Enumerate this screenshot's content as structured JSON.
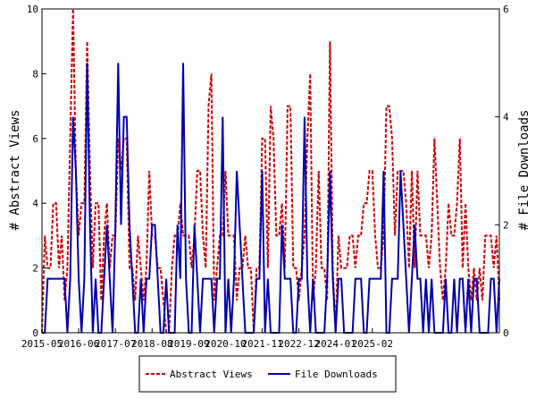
{
  "chart_data": {
    "type": "line",
    "title": "",
    "ylabel_left": "# Abstract Views",
    "ylabel_right": "# File Downloads",
    "ylim_left": [
      0,
      10
    ],
    "ylim_right": [
      0,
      6
    ],
    "grid": false,
    "legend_position": "bottom-center",
    "x_ticks": [
      "2015-05",
      "2016-06",
      "2017-07",
      "2018-08",
      "2019-09",
      "2020-10",
      "2021-11",
      "2022-12",
      "2024-01",
      "2025-02"
    ],
    "y_ticks_left": [
      0,
      2,
      4,
      6,
      8,
      10
    ],
    "y_ticks_right": [
      0,
      2,
      4,
      6
    ],
    "x_start": "2015-05",
    "series": [
      {
        "name": "Abstract Views",
        "axis": "left",
        "color": "#cc0000",
        "dashed": true,
        "values": [
          0,
          3,
          2,
          2,
          4,
          4,
          2,
          3,
          1,
          2,
          6,
          10,
          5,
          3,
          4,
          4,
          9,
          5,
          2,
          4,
          4,
          1,
          3,
          4,
          2,
          3,
          3,
          6,
          5,
          6,
          6,
          2,
          2,
          1,
          3,
          2,
          1,
          2,
          5,
          3,
          3,
          2,
          2,
          1,
          0,
          0,
          2,
          3,
          3,
          4,
          3,
          3,
          3,
          2,
          3,
          5,
          5,
          3,
          2,
          7,
          8,
          1,
          2,
          3,
          3,
          5,
          3,
          3,
          3,
          1,
          2,
          2,
          3,
          2,
          2,
          0,
          2,
          2,
          6,
          6,
          2,
          7,
          6,
          3,
          3,
          4,
          2,
          7,
          7,
          2,
          2,
          1,
          2,
          3,
          6,
          8,
          1,
          2,
          5,
          2,
          2,
          1,
          9,
          2,
          0,
          3,
          2,
          2,
          2,
          3,
          3,
          2,
          3,
          3,
          4,
          4,
          5,
          5,
          3,
          2,
          2,
          3,
          7,
          7,
          6,
          3,
          5,
          5,
          5,
          4,
          2,
          5,
          2,
          5,
          3,
          3,
          3,
          2,
          3,
          6,
          4,
          2,
          1,
          2,
          4,
          3,
          3,
          4,
          6,
          2,
          4,
          2,
          1,
          2,
          1,
          2,
          1,
          3,
          3,
          3,
          2,
          3,
          1
        ]
      },
      {
        "name": "File Downloads",
        "axis": "right",
        "color": "#0000aa",
        "dashed": false,
        "values": [
          0,
          0,
          1,
          1,
          1,
          1,
          1,
          1,
          1,
          0,
          1,
          4,
          3,
          1,
          0,
          1,
          5,
          2,
          0,
          1,
          0,
          0,
          1,
          2,
          1,
          0,
          2,
          5,
          2,
          4,
          4,
          2,
          1,
          0,
          0,
          1,
          0,
          1,
          1,
          2,
          2,
          1,
          0,
          0,
          1,
          0,
          0,
          0,
          2,
          1,
          5,
          1,
          0,
          0,
          2,
          1,
          0,
          1,
          1,
          1,
          1,
          0,
          1,
          1,
          4,
          0,
          1,
          0,
          1,
          3,
          2,
          1,
          0,
          0,
          0,
          0,
          1,
          1,
          3,
          0,
          1,
          0,
          0,
          0,
          0,
          2,
          1,
          1,
          1,
          0,
          0,
          1,
          1,
          4,
          1,
          0,
          1,
          0,
          0,
          0,
          0,
          1,
          3,
          1,
          0,
          1,
          1,
          0,
          0,
          0,
          0,
          1,
          1,
          1,
          0,
          0,
          1,
          1,
          1,
          1,
          1,
          3,
          0,
          0,
          1,
          1,
          1,
          3,
          2,
          1,
          0,
          1,
          2,
          1,
          1,
          0,
          1,
          0,
          1,
          0,
          0,
          0,
          0,
          1,
          0,
          0,
          1,
          0,
          1,
          1,
          0,
          1,
          0,
          1,
          1,
          0,
          0,
          0,
          0,
          1,
          1,
          0,
          1
        ]
      }
    ]
  }
}
